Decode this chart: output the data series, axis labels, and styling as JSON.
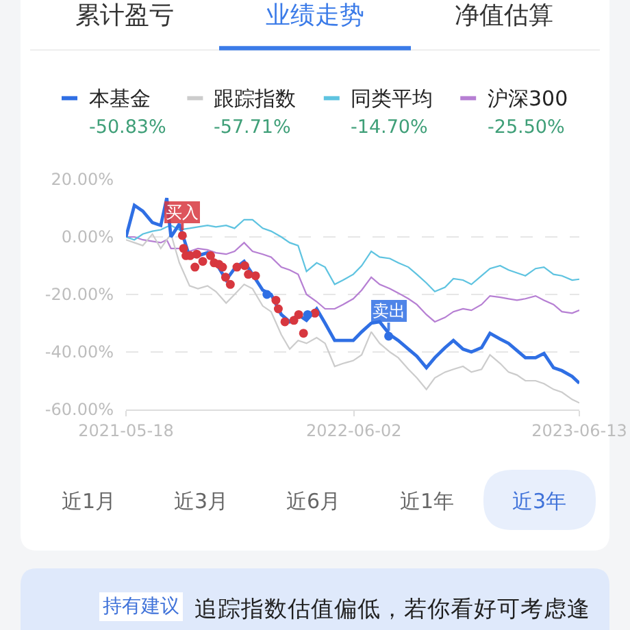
{
  "chart_data": {
    "type": "line",
    "x": [
      "2021-05-18",
      "2021-06-01",
      "2021-06-15",
      "2021-07-01",
      "2021-07-15",
      "2021-07-25",
      "2021-08-01",
      "2021-08-15",
      "2021-09-01",
      "2021-09-15",
      "2021-10-01",
      "2021-10-15",
      "2021-11-01",
      "2021-11-15",
      "2021-12-01",
      "2021-12-15",
      "2022-01-01",
      "2022-01-15",
      "2022-02-01",
      "2022-02-15",
      "2022-03-01",
      "2022-03-15",
      "2022-04-01",
      "2022-04-15",
      "2022-05-01",
      "2022-05-15",
      "2022-06-01",
      "2022-06-15",
      "2022-07-01",
      "2022-07-15",
      "2022-08-01",
      "2022-08-15",
      "2022-09-01",
      "2022-09-15",
      "2022-10-01",
      "2022-10-15",
      "2022-11-01",
      "2022-11-15",
      "2022-12-01",
      "2022-12-15",
      "2023-01-01",
      "2023-01-15",
      "2023-02-01",
      "2023-02-15",
      "2023-03-01",
      "2023-03-15",
      "2023-04-01",
      "2023-04-15",
      "2023-05-01",
      "2023-05-15",
      "2023-06-01",
      "2023-06-13"
    ],
    "xlim": [
      "2021-05-18",
      "2023-06-13"
    ],
    "xticks": [
      "2021-05-18",
      "2022-06-02",
      "2023-06-13"
    ],
    "ylim": [
      -60,
      20
    ],
    "yticks": [
      {
        "value": 20,
        "label": "20.00%"
      },
      {
        "value": 0,
        "label": "0.00%"
      },
      {
        "value": -20,
        "label": "-20.00%"
      },
      {
        "value": -40,
        "label": "-40.00%"
      },
      {
        "value": -60,
        "label": "-60.00%"
      }
    ],
    "grid": "y",
    "legend": "top",
    "series": [
      {
        "name": "本基金",
        "color": "#2f6fe4",
        "values": [
          0,
          11,
          9,
          5,
          4,
          13.5,
          0,
          4.5,
          -7,
          -6.5,
          -5.5,
          -9,
          -15,
          -11,
          -8.5,
          -13,
          -18.5,
          -20,
          -27,
          -29.5,
          -27,
          -29,
          -25,
          -30,
          -36,
          -36,
          -36,
          -33,
          -30,
          -29.5,
          -34,
          -36,
          -39,
          -41.5,
          -45.5,
          -42,
          -38.5,
          -36,
          -39,
          -40,
          -38.5,
          -33.5,
          -35.5,
          -37,
          -39.5,
          -42,
          -42,
          -40.5,
          -45.5,
          -46.5,
          -48.5,
          -50.83
        ]
      },
      {
        "name": "跟踪指数",
        "color": "#cccccc",
        "values": [
          -1,
          -2,
          -3,
          1,
          -4,
          -1,
          1,
          -9,
          -17,
          -18,
          -17,
          -19,
          -23,
          -20,
          -16.5,
          -18,
          -24,
          -26,
          -34,
          -39,
          -36,
          -37,
          -35,
          -37,
          -45,
          -44,
          -43,
          -41,
          -33,
          -37,
          -40,
          -42,
          -46,
          -49,
          -53,
          -49,
          -47,
          -46,
          -45,
          -47,
          -46,
          -41,
          -44,
          -47,
          -48,
          -50,
          -50,
          -51,
          -53,
          -54,
          -56.5,
          -57.71
        ]
      },
      {
        "name": "同类平均",
        "color": "#5ec3e0",
        "values": [
          0,
          -1,
          1,
          2,
          2.5,
          3.5,
          4,
          2.5,
          3,
          3.5,
          4,
          3.5,
          4,
          3,
          6,
          6,
          3,
          2,
          0,
          -2,
          -3,
          -12,
          -9,
          -10.5,
          -16.5,
          -15,
          -13,
          -10,
          -5,
          -7,
          -7.5,
          -9,
          -10.5,
          -13,
          -16,
          -19,
          -17.5,
          -14.5,
          -15,
          -16.5,
          -13.5,
          -11,
          -10,
          -11.5,
          -12.5,
          -13.5,
          -11,
          -10.5,
          -13,
          -13.5,
          -15,
          -14.7
        ]
      },
      {
        "name": "沪深300",
        "color": "#b67fd3",
        "values": [
          0,
          0,
          -1,
          -1.5,
          -2,
          -1,
          -4,
          -4,
          -5,
          -4,
          -4.5,
          -5.5,
          -6,
          -5,
          -2,
          -5,
          -6,
          -7,
          -10.5,
          -11.5,
          -13,
          -20,
          -22.5,
          -25,
          -25,
          -23.5,
          -21.5,
          -18.5,
          -14,
          -16.5,
          -18,
          -19.5,
          -21.5,
          -23.5,
          -27,
          -29.5,
          -28,
          -26,
          -25,
          -25.5,
          -23.5,
          -20.5,
          -21,
          -21.5,
          -22,
          -21.5,
          -20.5,
          -22,
          -23.5,
          -26,
          -26.5,
          -25.5
        ]
      },
      {
        "type": "scatter",
        "marker": "circle",
        "color": "#d7373f",
        "x": [
          "2021-08-20",
          "2021-08-22",
          "2021-08-26",
          "2021-09-02",
          "2021-09-10",
          "2021-09-13",
          "2021-09-23",
          "2021-10-06",
          "2021-10-12",
          "2021-10-20",
          "2021-10-26",
          "2021-10-31",
          "2021-11-08",
          "2021-11-19",
          "2021-12-02",
          "2021-12-08",
          "2021-12-20",
          "2022-01-23",
          "2022-01-27",
          "2022-02-07",
          "2022-02-22",
          "2022-03-02",
          "2022-03-10",
          "2022-03-29"
        ],
        "values": [
          0.5,
          -4,
          -6.5,
          -6.5,
          -10.5,
          -6,
          -8.5,
          -6.5,
          -9,
          -9.5,
          -10.5,
          -14,
          -16.5,
          -10.5,
          -10,
          -13,
          -13.5,
          -22,
          -25,
          -29.5,
          -29,
          -27,
          -33.5,
          -26.5
        ]
      },
      {
        "type": "scatter",
        "marker": "circle",
        "color": "#2f6fe4",
        "x": [
          "2022-01-08",
          "2022-03-17",
          "2022-07-30"
        ],
        "values": [
          -20,
          -27,
          -34.5
        ]
      }
    ],
    "annotations": [
      "累计盈亏",
      "业绩走势",
      "净值估算",
      "-50.83%",
      "-57.71%",
      "-14.70%",
      "-25.50%",
      {
        "text": "买入",
        "x": "2021-08-20",
        "y": 0.5
      },
      {
        "text": "卖出",
        "x": "2022-07-30",
        "y": -34.5
      },
      "近1月",
      "近3月",
      "近6月",
      "近1年",
      "近3年",
      "持有建议",
      "追踪指数估值偏低，若你看好可考虑逢"
    ]
  }
}
